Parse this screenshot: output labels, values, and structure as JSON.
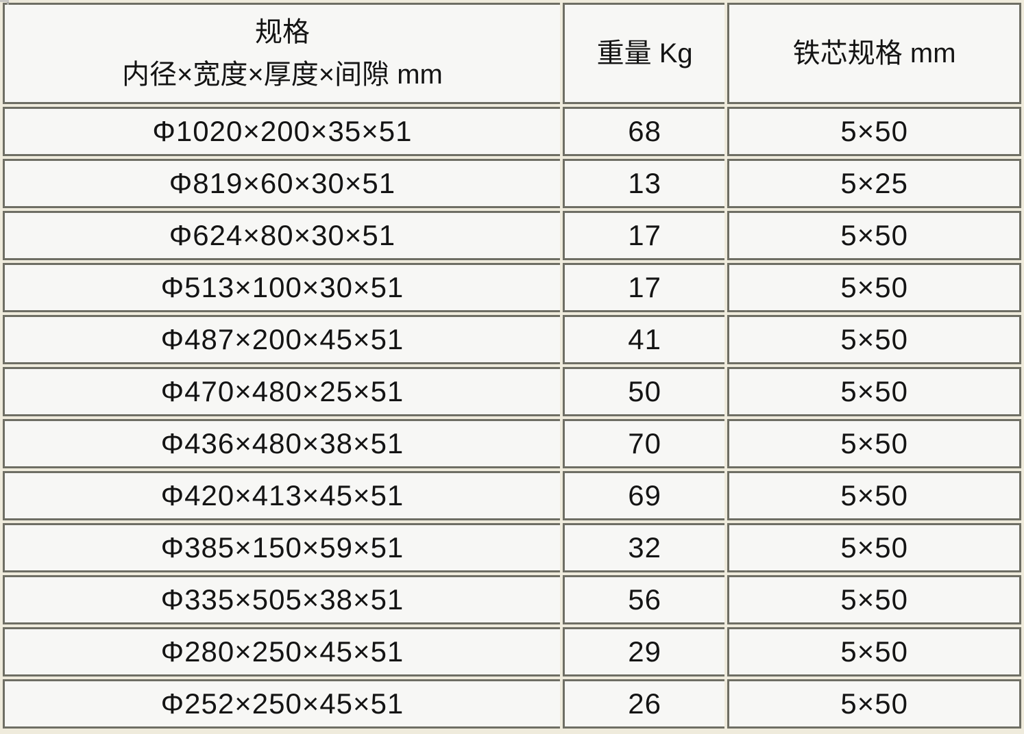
{
  "colors": {
    "page_background": "#efebdc",
    "cell_background": "#f7f7f5",
    "border": "#6e6e64",
    "text": "#141414"
  },
  "table": {
    "header": {
      "spec_line1": "规格",
      "spec_line2": "内径×宽度×厚度×间隙 mm",
      "weight": "重量 Kg",
      "core": "铁芯规格 mm"
    },
    "rows": [
      {
        "spec": "Φ1020×200×35×51",
        "weight": "68",
        "core": "5×50"
      },
      {
        "spec": "Φ819×60×30×51",
        "weight": "13",
        "core": "5×25"
      },
      {
        "spec": "Φ624×80×30×51",
        "weight": "17",
        "core": "5×50"
      },
      {
        "spec": "Φ513×100×30×51",
        "weight": "17",
        "core": "5×50"
      },
      {
        "spec": "Φ487×200×45×51",
        "weight": "41",
        "core": "5×50"
      },
      {
        "spec": "Φ470×480×25×51",
        "weight": "50",
        "core": "5×50"
      },
      {
        "spec": "Φ436×480×38×51",
        "weight": "70",
        "core": "5×50"
      },
      {
        "spec": "Φ420×413×45×51",
        "weight": "69",
        "core": "5×50"
      },
      {
        "spec": "Φ385×150×59×51",
        "weight": "32",
        "core": "5×50"
      },
      {
        "spec": "Φ335×505×38×51",
        "weight": "56",
        "core": "5×50"
      },
      {
        "spec": "Φ280×250×45×51",
        "weight": "29",
        "core": "5×50"
      },
      {
        "spec": "Φ252×250×45×51",
        "weight": "26",
        "core": "5×50"
      }
    ]
  }
}
